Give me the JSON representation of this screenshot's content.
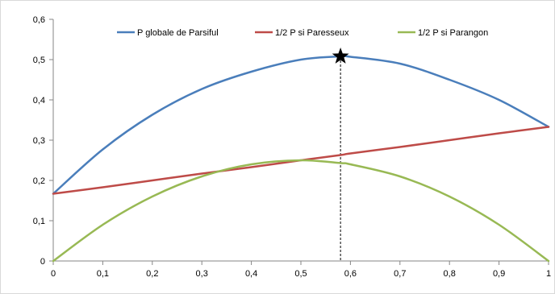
{
  "chart_data": {
    "type": "line",
    "title": "",
    "xlabel": "",
    "ylabel": "",
    "xlim": [
      0,
      1
    ],
    "ylim": [
      0,
      0.6
    ],
    "x_ticks": [
      "0",
      "0,1",
      "0,2",
      "0,3",
      "0,4",
      "0,5",
      "0,6",
      "0,7",
      "0,8",
      "0,9",
      "1"
    ],
    "y_ticks": [
      "0",
      "0,1",
      "0,2",
      "0,3",
      "0,4",
      "0,5",
      "0,6"
    ],
    "grid": false,
    "legend_position": "top",
    "x": [
      0,
      0.1,
      0.2,
      0.3,
      0.4,
      0.5,
      0.58,
      0.6,
      0.7,
      0.8,
      0.9,
      1
    ],
    "series": [
      {
        "name": "P globale de Parsiful",
        "color": "#4a7ebb",
        "values": [
          0.167,
          0.277,
          0.363,
          0.427,
          0.47,
          0.5,
          0.508,
          0.507,
          0.49,
          0.45,
          0.4,
          0.333
        ]
      },
      {
        "name": "1/2 P si Paresseux",
        "color": "#be4b48",
        "values": [
          0.167,
          0.183,
          0.2,
          0.217,
          0.233,
          0.25,
          0.263,
          0.267,
          0.283,
          0.3,
          0.317,
          0.333
        ]
      },
      {
        "name": "1/2 P si Parangon",
        "color": "#98b954",
        "values": [
          0.0,
          0.09,
          0.16,
          0.21,
          0.24,
          0.25,
          0.243,
          0.24,
          0.21,
          0.16,
          0.09,
          0.0
        ]
      }
    ],
    "annotations": [
      {
        "type": "star-marker",
        "x": 0.58,
        "y": 0.508,
        "color": "#000000"
      },
      {
        "type": "dashed-vertical-line",
        "x": 0.58,
        "from_y": 0,
        "to_y": 0.508,
        "color": "#000000"
      }
    ]
  }
}
